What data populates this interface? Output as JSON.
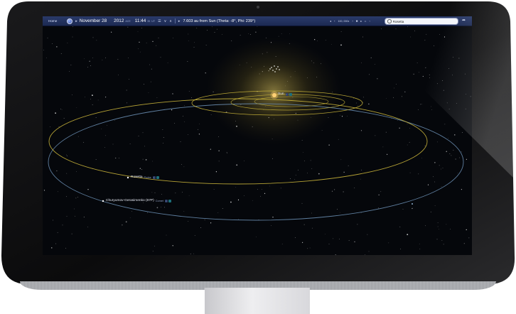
{
  "toolbar": {
    "home_label": "Home",
    "date": "November 28",
    "year": "2012",
    "era": "ACE",
    "time": "11:44",
    "seconds": "35",
    "timezone": "UT",
    "distance_readout": "7.603 au from Sun (Theta: -8°, Phi: 239°)",
    "time_rate": "100, 000x",
    "search_value": "Rosetta"
  },
  "icons": {
    "globe": "globe-icon",
    "search": "search-icon",
    "share": "share-icon"
  },
  "scene": {
    "labels": {
      "sun": {
        "name": "Sun"
      },
      "rosetta": {
        "name": "Rosetta",
        "type": "Probe"
      },
      "comet": {
        "name": "Churyumov-Gerasimenko (67P)",
        "type": "Comet"
      }
    }
  },
  "colors": {
    "orbit_yellow": "#c9b43a",
    "orbit_blue": "#6f93b8",
    "sun_glow": "#d8c060",
    "toolbar": "#22325e"
  }
}
